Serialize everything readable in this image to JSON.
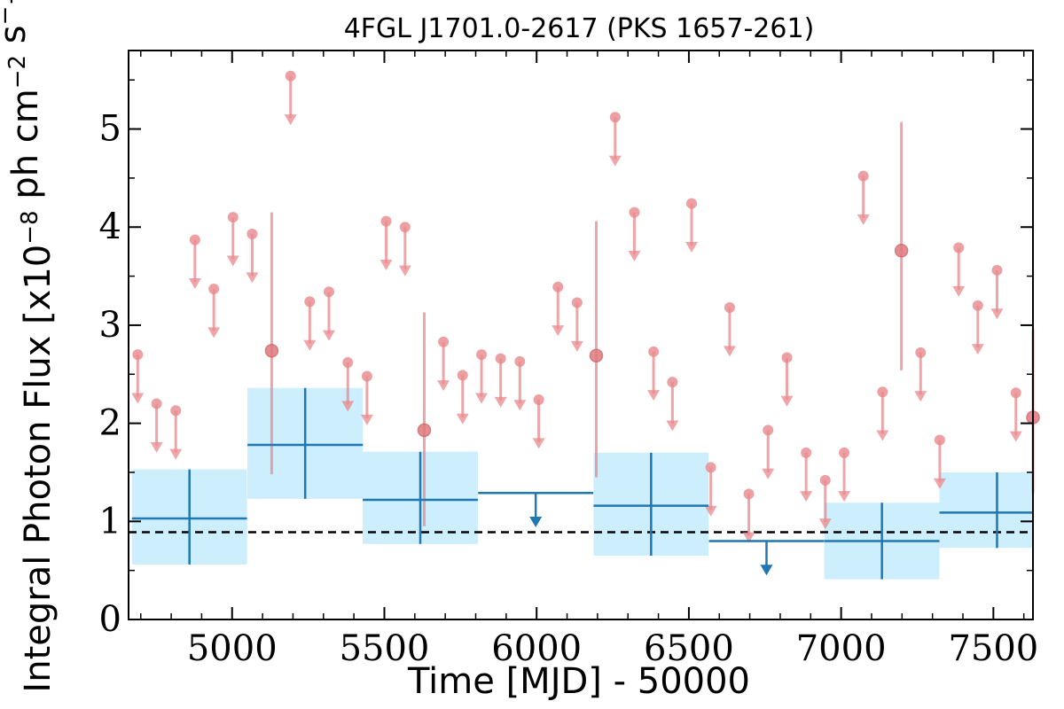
{
  "chart_data": {
    "type": "scatter",
    "title": "4FGL J1701.0-2617 (PKS 1657-261)",
    "xlabel": "Time [MJD] - 50000",
    "ylabel": "Integral Photon Flux [x10^-8 ph cm^-2 s^-1]",
    "xlim": [
      4660,
      7630
    ],
    "ylim": [
      0,
      5.8
    ],
    "xticks": [
      5000,
      5500,
      6000,
      6500,
      7000,
      7500
    ],
    "yticks": [
      0,
      1,
      2,
      3,
      4,
      5
    ],
    "grid": false,
    "reference_line": {
      "y": 0.89,
      "style": "dashed",
      "color": "#000000"
    },
    "colors": {
      "coarse": "#1f77b4",
      "coarse_band": "#cdeefc",
      "fine": "#e8888c"
    },
    "series": [
      {
        "points": [
          {
            "x": 4690,
            "y": 2.7,
            "upper_limit": true
          },
          {
            "x": 4752,
            "y": 2.2,
            "upper_limit": true
          },
          {
            "x": 4815,
            "y": 2.13,
            "upper_limit": true
          },
          {
            "x": 4878,
            "y": 3.87,
            "upper_limit": true
          },
          {
            "x": 4940,
            "y": 3.37,
            "upper_limit": true
          },
          {
            "x": 5003,
            "y": 4.1,
            "upper_limit": true
          },
          {
            "x": 5066,
            "y": 3.93,
            "upper_limit": true
          },
          {
            "x": 5130,
            "y": 2.74,
            "yerr": [
              1.26,
              1.41
            ]
          },
          {
            "x": 5192,
            "y": 5.54,
            "upper_limit": true
          },
          {
            "x": 5255,
            "y": 3.24,
            "upper_limit": true
          },
          {
            "x": 5318,
            "y": 3.34,
            "upper_limit": true
          },
          {
            "x": 5380,
            "y": 2.62,
            "upper_limit": true
          },
          {
            "x": 5443,
            "y": 2.48,
            "upper_limit": true
          },
          {
            "x": 5506,
            "y": 4.06,
            "upper_limit": true
          },
          {
            "x": 5568,
            "y": 4.0,
            "upper_limit": true
          },
          {
            "x": 5631,
            "y": 1.93,
            "yerr": [
              0.98,
              1.2
            ]
          },
          {
            "x": 5694,
            "y": 2.83,
            "upper_limit": true
          },
          {
            "x": 5757,
            "y": 2.49,
            "upper_limit": true
          },
          {
            "x": 5819,
            "y": 2.7,
            "upper_limit": true
          },
          {
            "x": 5882,
            "y": 2.66,
            "upper_limit": true
          },
          {
            "x": 5945,
            "y": 2.63,
            "upper_limit": true
          },
          {
            "x": 6007,
            "y": 2.24,
            "upper_limit": true
          },
          {
            "x": 6070,
            "y": 3.39,
            "upper_limit": true
          },
          {
            "x": 6133,
            "y": 3.23,
            "upper_limit": true
          },
          {
            "x": 6196,
            "y": 2.69,
            "yerr": [
              1.24,
              1.37
            ]
          },
          {
            "x": 6258,
            "y": 5.12,
            "upper_limit": true
          },
          {
            "x": 6321,
            "y": 4.15,
            "upper_limit": true
          },
          {
            "x": 6384,
            "y": 2.73,
            "upper_limit": true
          },
          {
            "x": 6446,
            "y": 2.42,
            "upper_limit": true
          },
          {
            "x": 6509,
            "y": 4.24,
            "upper_limit": true
          },
          {
            "x": 6572,
            "y": 1.55,
            "upper_limit": true
          },
          {
            "x": 6634,
            "y": 3.18,
            "upper_limit": true
          },
          {
            "x": 6697,
            "y": 1.28,
            "upper_limit": true
          },
          {
            "x": 6760,
            "y": 1.93,
            "upper_limit": true
          },
          {
            "x": 6822,
            "y": 2.67,
            "upper_limit": true
          },
          {
            "x": 6885,
            "y": 1.7,
            "upper_limit": true
          },
          {
            "x": 6948,
            "y": 1.42,
            "upper_limit": true
          },
          {
            "x": 7010,
            "y": 1.7,
            "upper_limit": true
          },
          {
            "x": 7073,
            "y": 4.52,
            "upper_limit": true
          },
          {
            "x": 7136,
            "y": 2.32,
            "upper_limit": true
          },
          {
            "x": 7198,
            "y": 3.76,
            "yerr": [
              1.22,
              1.31
            ]
          },
          {
            "x": 7261,
            "y": 2.72,
            "upper_limit": true
          },
          {
            "x": 7324,
            "y": 1.83,
            "upper_limit": true
          },
          {
            "x": 7386,
            "y": 3.79,
            "upper_limit": true
          },
          {
            "x": 7449,
            "y": 3.2,
            "upper_limit": true
          },
          {
            "x": 7512,
            "y": 3.56,
            "upper_limit": true
          },
          {
            "x": 7574,
            "y": 2.31,
            "upper_limit": true
          },
          {
            "x": 7637,
            "y": 2.06,
            "yerr": [
              0.77,
              0.9
            ]
          }
        ]
      },
      {
        "points": [
          {
            "x": 4860,
            "y": 1.03,
            "xerr": 378,
            "yerr": [
              0.47,
              0.5
            ]
          },
          {
            "x": 5240,
            "y": 1.78,
            "xerr": 379,
            "yerr": [
              0.55,
              0.58
            ]
          },
          {
            "x": 5618,
            "y": 1.22,
            "xerr": 378,
            "yerr": [
              0.45,
              0.49
            ]
          },
          {
            "x": 5997,
            "y": 1.29,
            "xerr": 378,
            "upper_limit": true
          },
          {
            "x": 6376,
            "y": 1.16,
            "xerr": 378,
            "yerr": [
              0.51,
              0.54
            ]
          },
          {
            "x": 6755,
            "y": 0.8,
            "xerr": 378,
            "upper_limit": true
          },
          {
            "x": 7134,
            "y": 0.8,
            "xerr": 378,
            "yerr": [
              0.39,
              0.39
            ]
          },
          {
            "x": 7512,
            "y": 1.09,
            "xerr": 378,
            "yerr": [
              0.36,
              0.41
            ]
          }
        ]
      }
    ]
  }
}
